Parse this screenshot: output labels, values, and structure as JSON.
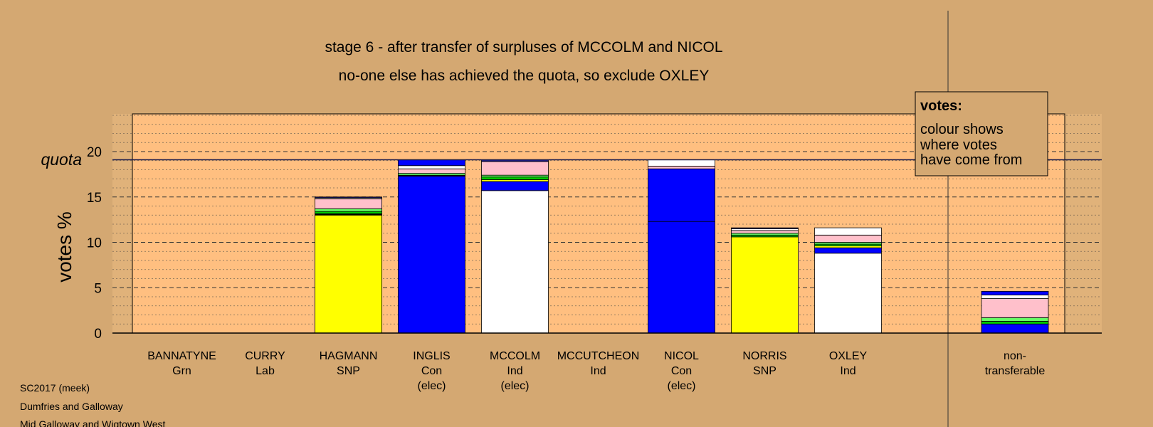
{
  "chart_data": {
    "type": "bar",
    "stacked": true,
    "title_lines": [
      "stage 6 - after transfer of surpluses of MCCOLM and NICOL",
      "no-one else has achieved the quota, so exclude OXLEY"
    ],
    "ylabel": "votes %",
    "quota_label": "quota",
    "quota_value": 19.1,
    "ylim": [
      0,
      24
    ],
    "y_ticks": [
      "0",
      "5",
      "10",
      "15",
      "20"
    ],
    "y_tick_values": [
      0,
      5,
      10,
      15,
      20
    ],
    "grid": "dashed major, dotted minor",
    "legend": {
      "title": "votes:",
      "lines": [
        "colour shows",
        "where votes",
        "have come from"
      ],
      "position": "top-right"
    },
    "candidates": [
      {
        "name": "BANNATYNE",
        "party": "Grn",
        "status": "",
        "segments": []
      },
      {
        "name": "CURRY",
        "party": "Lab",
        "status": "",
        "segments": []
      },
      {
        "name": "HAGMANN",
        "party": "SNP",
        "status": "",
        "segments": [
          {
            "color": "#ffff00",
            "value": 13.0
          },
          {
            "color": "#000000",
            "value": 0.15
          },
          {
            "color": "#00cc00",
            "value": 0.25
          },
          {
            "color": "#66ff66",
            "value": 0.3
          },
          {
            "color": "#ffc0cb",
            "value": 1.1
          },
          {
            "color": "#ffffff",
            "value": 0.1
          },
          {
            "color": "#1a1a8a",
            "value": 0.1
          }
        ]
      },
      {
        "name": "INGLIS",
        "party": "Con",
        "status": "(elec)",
        "segments": [
          {
            "color": "#0000ff",
            "value": 17.3
          },
          {
            "color": "#000000",
            "value": 0.1
          },
          {
            "color": "#66ff66",
            "value": 0.2
          },
          {
            "color": "#ffc0cb",
            "value": 0.5
          },
          {
            "color": "#ffffff",
            "value": 0.35
          },
          {
            "color": "#0000ff",
            "value": 0.65
          }
        ]
      },
      {
        "name": "MCCOLM",
        "party": "Ind",
        "status": "(elec)",
        "segments": [
          {
            "color": "#ffffff",
            "value": 15.7
          },
          {
            "color": "#0000ff",
            "value": 1.0
          },
          {
            "color": "#ffff00",
            "value": 0.2
          },
          {
            "color": "#00cc00",
            "value": 0.3
          },
          {
            "color": "#66ff66",
            "value": 0.2
          },
          {
            "color": "#ffc0cb",
            "value": 1.5
          },
          {
            "color": "#1a1a8a",
            "value": 0.2
          }
        ]
      },
      {
        "name": "MCCUTCHEON",
        "party": "Ind",
        "status": "",
        "segments": []
      },
      {
        "name": "NICOL",
        "party": "Con",
        "status": "(elec)",
        "segments": [
          {
            "color": "#0000ff",
            "value": 12.3
          },
          {
            "color": "#0000ff",
            "value": 5.8
          },
          {
            "color": "#ffc0cb",
            "value": 0.3
          },
          {
            "color": "#ffffff",
            "value": 0.7
          }
        ]
      },
      {
        "name": "NORRIS",
        "party": "SNP",
        "status": "",
        "segments": [
          {
            "color": "#ffff00",
            "value": 10.6
          },
          {
            "color": "#00cc00",
            "value": 0.2
          },
          {
            "color": "#66ff66",
            "value": 0.2
          },
          {
            "color": "#ffc0cb",
            "value": 0.3
          },
          {
            "color": "#ffffff",
            "value": 0.2
          },
          {
            "color": "#1a1a8a",
            "value": 0.1
          }
        ]
      },
      {
        "name": "OXLEY",
        "party": "Ind",
        "status": "",
        "segments": [
          {
            "color": "#ffffff",
            "value": 8.8
          },
          {
            "color": "#0000ff",
            "value": 0.6
          },
          {
            "color": "#ffff00",
            "value": 0.2
          },
          {
            "color": "#00cc00",
            "value": 0.2
          },
          {
            "color": "#66ff66",
            "value": 0.2
          },
          {
            "color": "#ffc0cb",
            "value": 0.8
          },
          {
            "color": "#ffffff",
            "value": 0.8
          }
        ]
      }
    ],
    "nontransferable": {
      "label_lines": [
        "non-",
        "transferable"
      ],
      "segments": [
        {
          "color": "#0000ff",
          "value": 1.0
        },
        {
          "color": "#00cc00",
          "value": 0.3
        },
        {
          "color": "#66ff66",
          "value": 0.4
        },
        {
          "color": "#ffc0cb",
          "value": 2.1
        },
        {
          "color": "#ffffff",
          "value": 0.4
        },
        {
          "color": "#0000ff",
          "value": 0.4
        }
      ]
    }
  },
  "footer": [
    "SC2017 (meek)",
    "Dumfries and Galloway",
    "Mid Galloway and Wigtown West"
  ],
  "colors": {
    "background": "#d4a872",
    "plot_area": "#ffbf80"
  }
}
